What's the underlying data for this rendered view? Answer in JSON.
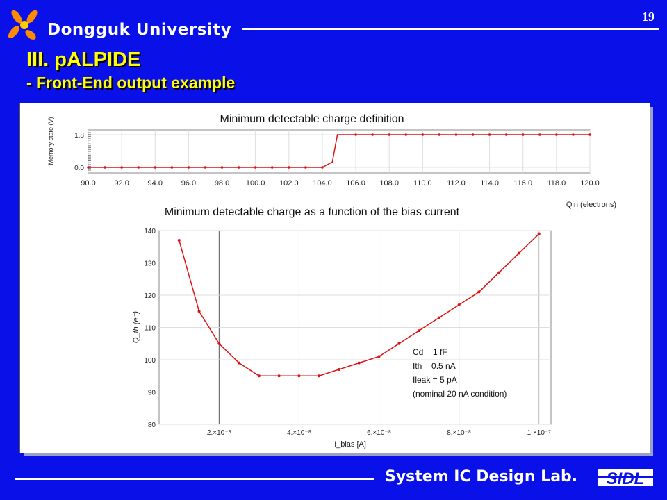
{
  "header": {
    "university": "Dongguk University",
    "page_number": "19",
    "title": "III. pALPIDE",
    "subtitle": "- Front-End output example"
  },
  "footer": {
    "lab": "System IC Design Lab.",
    "logo_text": "SIDL"
  },
  "colors": {
    "background": "#0a10e8",
    "title": "#ffff00",
    "curve": "#e01010"
  },
  "chart_data": [
    {
      "type": "line",
      "title": "Minimum detectable charge definition",
      "ylabel": "Memory state (V)",
      "xlabel": "Qin (electrons)",
      "xlim": [
        90,
        120
      ],
      "ylim": [
        0,
        1.8
      ],
      "xticks": [
        "90.0",
        "92.0",
        "94.0",
        "96.0",
        "98.0",
        "100.0",
        "102.0",
        "104.0",
        "106.0",
        "108.0",
        "110.0",
        "112.0",
        "114.0",
        "116.0",
        "118.0",
        "120.0"
      ],
      "yticks": [
        "0.0",
        "1.8"
      ],
      "grid": true,
      "x": [
        90,
        91,
        92,
        93,
        94,
        95,
        96,
        97,
        98,
        99,
        100,
        101,
        102,
        103,
        104,
        104.6,
        104.9,
        106,
        107,
        108,
        109,
        110,
        111,
        112,
        113,
        114,
        115,
        116,
        117,
        118,
        119,
        120
      ],
      "y": [
        0,
        0,
        0,
        0,
        0,
        0,
        0,
        0,
        0,
        0,
        0,
        0,
        0,
        0,
        0,
        0.3,
        1.8,
        1.8,
        1.8,
        1.8,
        1.8,
        1.8,
        1.8,
        1.8,
        1.8,
        1.8,
        1.8,
        1.8,
        1.8,
        1.8,
        1.8,
        1.8
      ]
    },
    {
      "type": "line",
      "title": "Minimum detectable charge as a function of the bias current",
      "ylabel": "Q_th (e⁻)",
      "xlabel": "I_bias [A]",
      "xlim": [
        5e-09,
        1.03e-07
      ],
      "ylim": [
        80,
        140
      ],
      "xticks": [
        {
          "v": 2e-08,
          "label": "2.×10⁻⁸"
        },
        {
          "v": 4e-08,
          "label": "4.×10⁻⁸"
        },
        {
          "v": 6e-08,
          "label": "6.×10⁻⁸"
        },
        {
          "v": 8e-08,
          "label": "8.×10⁻⁸"
        },
        {
          "v": 1e-07,
          "label": "1.×10⁻⁷"
        }
      ],
      "yticks": [
        80,
        90,
        100,
        110,
        120,
        130,
        140
      ],
      "grid": true,
      "x": [
        1e-08,
        1.5e-08,
        2e-08,
        2.5e-08,
        3e-08,
        3.5e-08,
        4e-08,
        4.5e-08,
        5e-08,
        5.5e-08,
        6e-08,
        6.5e-08,
        7e-08,
        7.5e-08,
        8e-08,
        8.5e-08,
        9e-08,
        9.5e-08,
        1e-07
      ],
      "y": [
        137,
        115,
        105,
        99,
        95,
        95,
        95,
        95,
        97,
        99,
        101,
        105,
        109,
        113,
        117,
        121,
        127,
        133,
        139
      ],
      "annotations": [
        "Cd = 1 fF",
        "Ith = 0.5 nA",
        "Ileak = 5 pA",
        "(nominal 20 nA condition)"
      ]
    }
  ]
}
